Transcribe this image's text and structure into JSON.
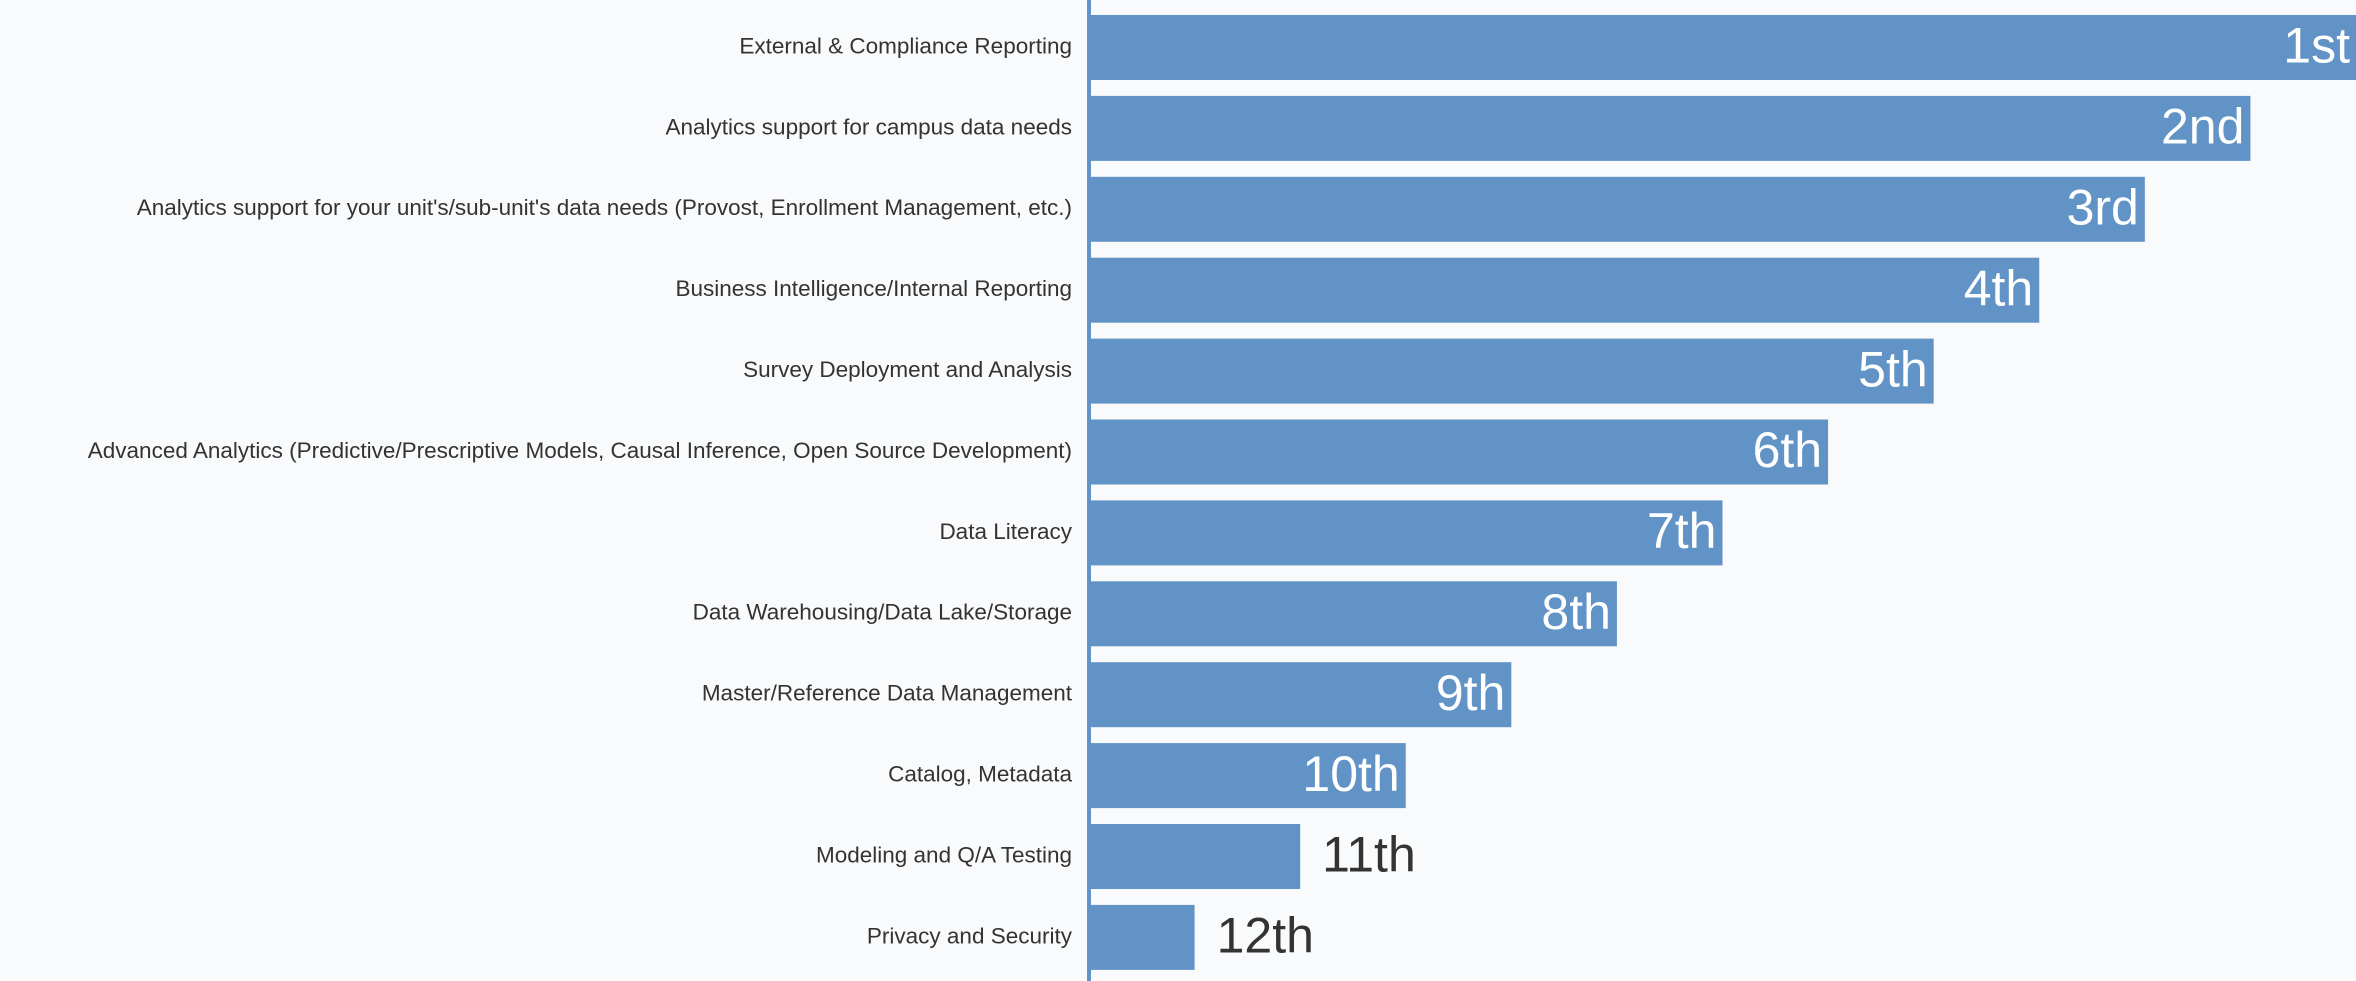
{
  "chart_data": {
    "type": "bar",
    "orientation": "horizontal",
    "categories": [
      "External & Compliance Reporting",
      "Analytics support for campus data needs",
      "Analytics support for your unit's/sub-unit's data needs (Provost, Enrollment Management, etc.)",
      "Business Intelligence/Internal Reporting",
      "Survey Deployment and Analysis",
      "Advanced Analytics (Predictive/Prescriptive Models, Causal Inference, Open Source Development)",
      "Data Literacy",
      "Data Warehousing/Data Lake/Storage",
      "Master/Reference Data Management",
      "Catalog, Metadata",
      "Modeling and Q/A Testing",
      "Privacy and Security"
    ],
    "values": [
      1,
      2,
      3,
      4,
      5,
      6,
      7,
      8,
      9,
      10,
      11,
      12
    ],
    "value_labels": [
      "1st",
      "2nd",
      "3rd",
      "4th",
      "5th",
      "6th",
      "7th",
      "8th",
      "9th",
      "10th",
      "11th",
      "12th"
    ],
    "xlim": [
      13,
      1
    ],
    "color": "#6293c6"
  }
}
